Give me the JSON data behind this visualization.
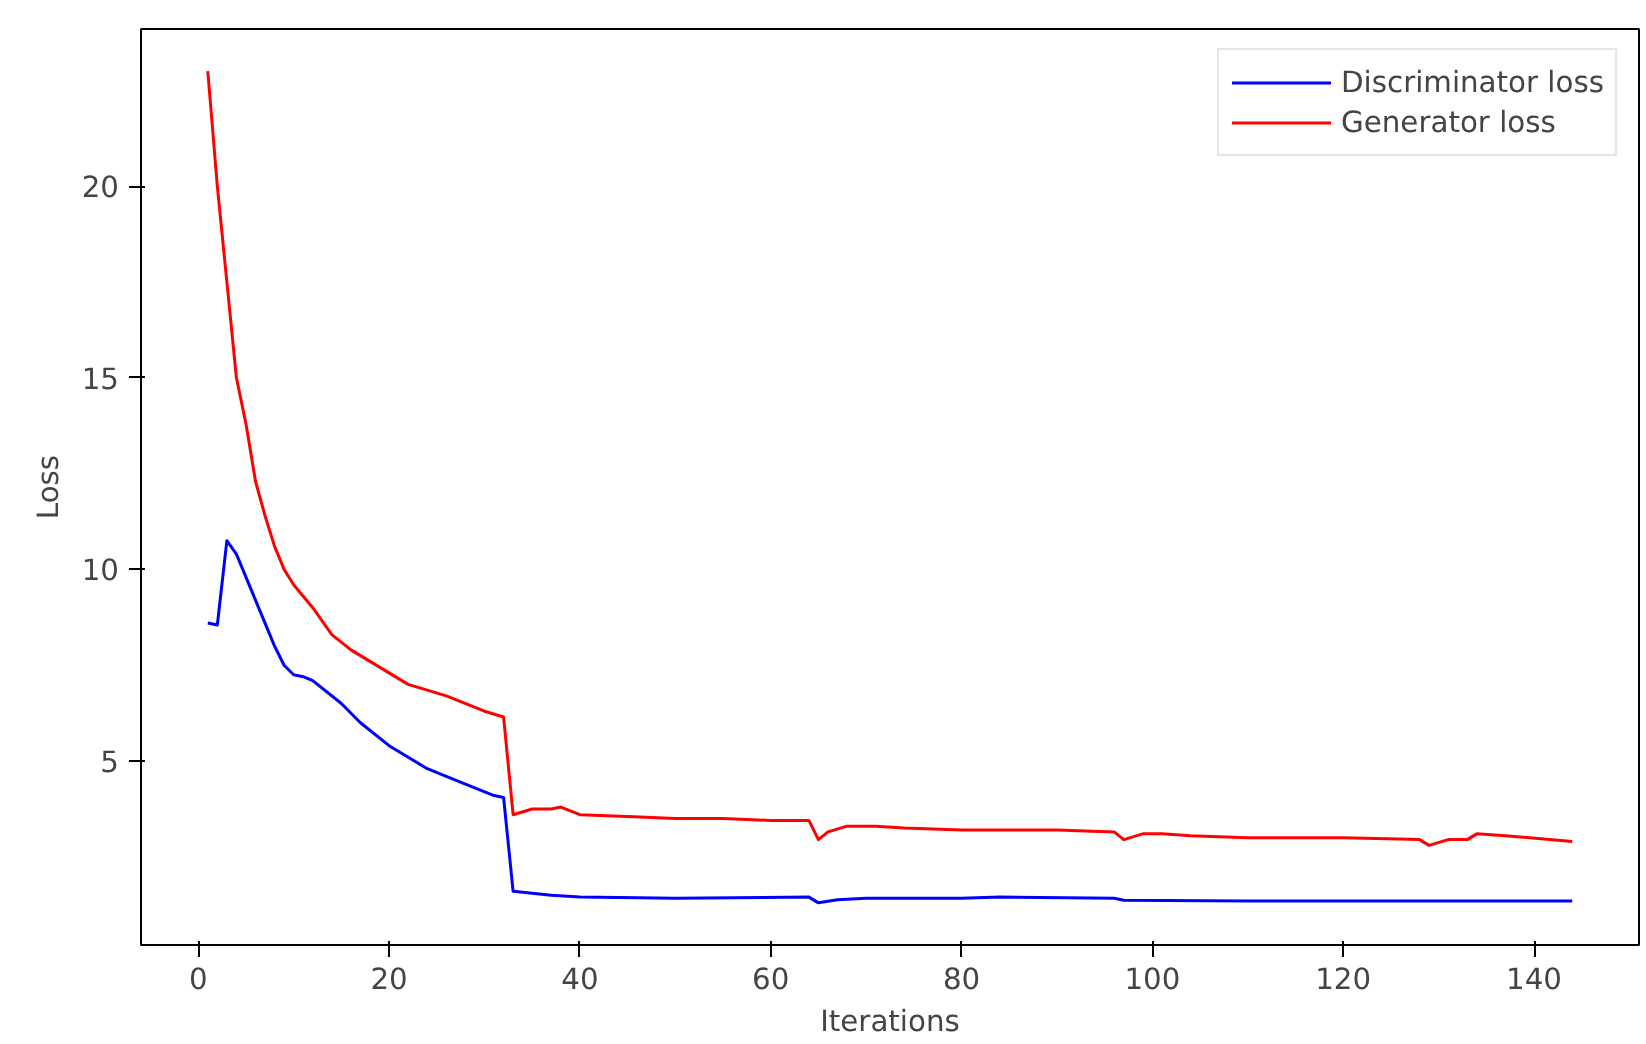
{
  "chart_data": {
    "type": "line",
    "xlabel": "Iterations",
    "ylabel": "Loss",
    "xlim": [
      -6,
      151
    ],
    "ylim": [
      0.2,
      24.1
    ],
    "xticks": [
      0,
      20,
      40,
      60,
      80,
      100,
      120,
      140
    ],
    "yticks": [
      5,
      10,
      15,
      20
    ],
    "grid": false,
    "legend": "top right",
    "series": [
      {
        "name": "Discriminator loss",
        "color": "#0000ff",
        "x": [
          1,
          2,
          3,
          4,
          5,
          6,
          7,
          8,
          9,
          10,
          11,
          12,
          15,
          17,
          20,
          24,
          28,
          31,
          32,
          33,
          37,
          40,
          50,
          64,
          65,
          67,
          70,
          80,
          84,
          96,
          97,
          110,
          120,
          144
        ],
        "values": [
          8.6,
          8.55,
          10.75,
          10.4,
          9.8,
          9.2,
          8.6,
          8.0,
          7.5,
          7.25,
          7.2,
          7.1,
          6.5,
          6.0,
          5.4,
          4.8,
          4.4,
          4.1,
          4.05,
          1.6,
          1.5,
          1.45,
          1.42,
          1.45,
          1.3,
          1.38,
          1.42,
          1.42,
          1.45,
          1.42,
          1.37,
          1.35,
          1.35,
          1.35
        ]
      },
      {
        "name": "Generator loss",
        "color": "#ff0000",
        "x": [
          1,
          2,
          3,
          4,
          5,
          6,
          7,
          8,
          9,
          10,
          11,
          12,
          14,
          16,
          20,
          22,
          26,
          30,
          32,
          33,
          35,
          37,
          38,
          40,
          45,
          50,
          55,
          60,
          64,
          65,
          66,
          68,
          71,
          74,
          80,
          90,
          96,
          97,
          99,
          101,
          104,
          110,
          120,
          128,
          129,
          131,
          133,
          134,
          137,
          144
        ],
        "values": [
          23.0,
          20.0,
          17.5,
          15.0,
          13.8,
          12.3,
          11.4,
          10.6,
          10.0,
          9.6,
          9.3,
          9.0,
          8.3,
          7.9,
          7.3,
          7.0,
          6.7,
          6.3,
          6.15,
          3.6,
          3.75,
          3.75,
          3.8,
          3.6,
          3.55,
          3.5,
          3.5,
          3.45,
          3.45,
          2.95,
          3.15,
          3.3,
          3.3,
          3.25,
          3.2,
          3.2,
          3.15,
          2.95,
          3.1,
          3.1,
          3.05,
          3.0,
          3.0,
          2.95,
          2.8,
          2.95,
          2.95,
          3.1,
          3.05,
          2.9
        ]
      }
    ]
  }
}
